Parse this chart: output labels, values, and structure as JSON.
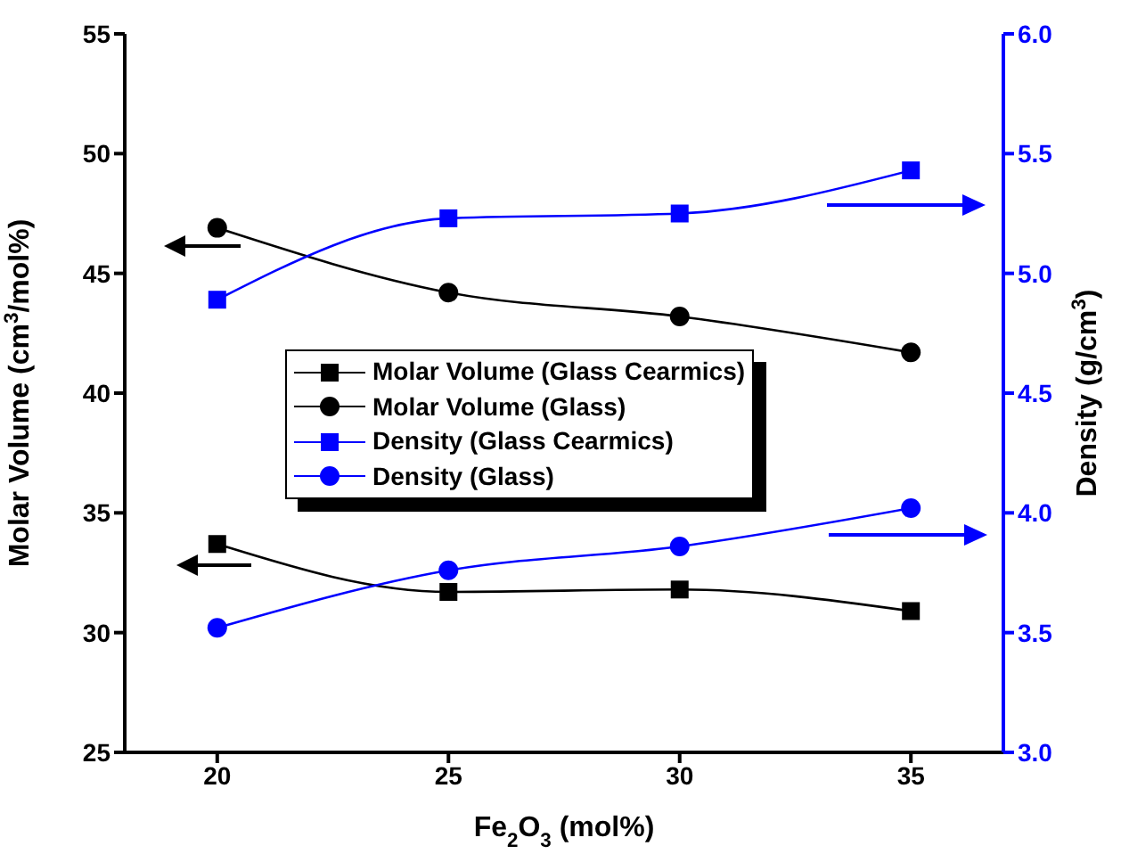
{
  "chart_data": {
    "type": "line",
    "xlabel": "Fe$_{2}$O$_{3}$ (mol%)",
    "ylabel": "Molar Volume (cm$^{3}$/mol%)",
    "y2label": "Density (g/cm$^{3}$)",
    "x": [
      20,
      25,
      30,
      35
    ],
    "xlim": [
      18,
      37
    ],
    "xticks": [
      20,
      25,
      30,
      35
    ],
    "ylim": [
      25,
      55
    ],
    "yticks": [
      25,
      30,
      35,
      40,
      45,
      50,
      55
    ],
    "y2lim": [
      3.0,
      6.0
    ],
    "y2ticks": [
      {
        "value": 3.0,
        "label": "3.0"
      },
      {
        "value": 3.5,
        "label": "3.5"
      },
      {
        "value": 4.0,
        "label": "4.0"
      },
      {
        "value": 4.5,
        "label": "4.5"
      },
      {
        "value": 5.0,
        "label": "5.0"
      },
      {
        "value": 5.5,
        "label": "5.5"
      },
      {
        "value": 6.0,
        "label": "6.0"
      }
    ],
    "legend": "center",
    "series": [
      {
        "name": "Molar Volume (Glass Cearmics)",
        "color": "#000000",
        "marker": "square",
        "values": [
          33.7,
          31.7,
          31.8,
          30.9
        ]
      },
      {
        "name": "Molar Volume (Glass)",
        "color": "#000000",
        "marker": "circle",
        "values": [
          46.9,
          44.2,
          43.2,
          41.7
        ]
      },
      {
        "name": "Density (Glass Cearmics)",
        "color": "#0000ff",
        "marker": "square",
        "axis": "y2",
        "values": [
          4.89,
          5.23,
          5.25,
          5.43
        ]
      },
      {
        "name": "Density (Glass)",
        "color": "#0000ff",
        "marker": "circle",
        "axis": "y2",
        "values": [
          3.52,
          3.76,
          3.86,
          4.02
        ]
      }
    ]
  }
}
